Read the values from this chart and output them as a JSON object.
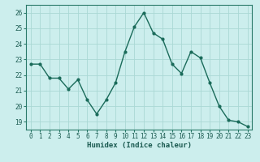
{
  "x": [
    0,
    1,
    2,
    3,
    4,
    5,
    6,
    7,
    8,
    9,
    10,
    11,
    12,
    13,
    14,
    15,
    16,
    17,
    18,
    19,
    20,
    21,
    22,
    23
  ],
  "y": [
    22.7,
    22.7,
    21.8,
    21.8,
    21.1,
    21.7,
    20.4,
    19.5,
    20.4,
    21.5,
    23.5,
    25.1,
    26.0,
    24.7,
    24.3,
    22.7,
    22.1,
    23.5,
    23.1,
    21.5,
    20.0,
    19.1,
    19.0,
    18.7
  ],
  "line_color": "#1a6b5a",
  "marker": ".",
  "marker_size": 4,
  "bg_color": "#cceeed",
  "grid_color": "#aad8d5",
  "xlabel": "Humidex (Indice chaleur)",
  "ylim": [
    18.5,
    26.5
  ],
  "yticks": [
    19,
    20,
    21,
    22,
    23,
    24,
    25,
    26
  ],
  "xticks": [
    0,
    1,
    2,
    3,
    4,
    5,
    6,
    7,
    8,
    9,
    10,
    11,
    12,
    13,
    14,
    15,
    16,
    17,
    18,
    19,
    20,
    21,
    22,
    23
  ],
  "text_color": "#1a5a50",
  "spine_color": "#2a7a6a"
}
